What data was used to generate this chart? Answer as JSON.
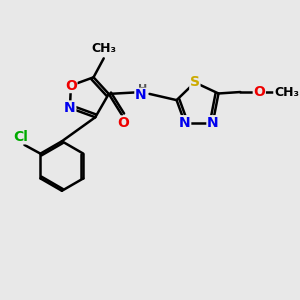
{
  "bg_color": "#e8e8e8",
  "bond_color": "#000000",
  "bond_width": 1.8,
  "atom_colors": {
    "N": "#0000ee",
    "O": "#ee0000",
    "S": "#ccaa00",
    "Cl": "#00aa00",
    "C": "#000000",
    "H": "#555555"
  },
  "font_size": 10,
  "label_bg": "#e8e8e8"
}
